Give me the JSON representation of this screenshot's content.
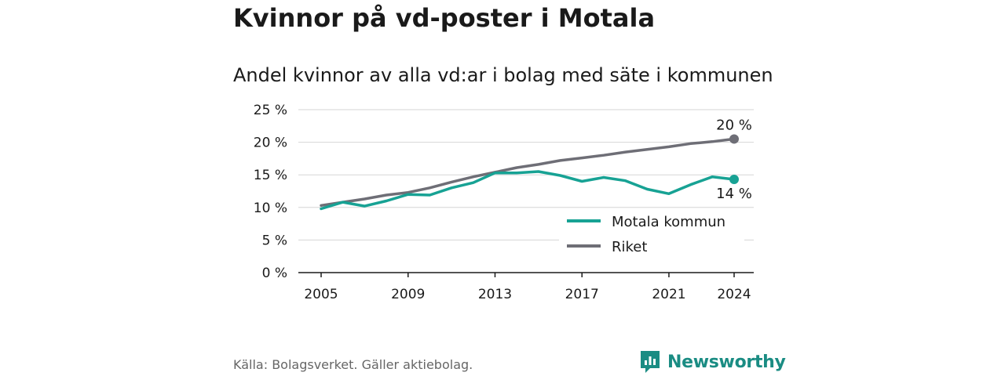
{
  "title": "Kvinnor på vd-poster i Motala",
  "subtitle": "Andel kvinnor av alla vd:ar i bolag med säte i kommunen",
  "source": "Källa: Bolagsverket. Gäller aktiebolag.",
  "brand": "Newsworthy",
  "chart_data": {
    "type": "line",
    "x": [
      2005,
      2006,
      2007,
      2008,
      2009,
      2010,
      2011,
      2012,
      2013,
      2014,
      2015,
      2016,
      2017,
      2018,
      2019,
      2020,
      2021,
      2022,
      2023,
      2024
    ],
    "ylim": [
      0,
      25
    ],
    "yticks": [
      0,
      5,
      10,
      15,
      20,
      25
    ],
    "ytick_labels": [
      "0 %",
      "5 %",
      "10 %",
      "15 %",
      "20 %",
      "25 %"
    ],
    "xticks": [
      2005,
      2009,
      2013,
      2017,
      2021,
      2024
    ],
    "xtick_labels": [
      "2005",
      "2009",
      "2013",
      "2017",
      "2021",
      "2024"
    ],
    "grid": "horizontal",
    "legend_position": "bottom-right",
    "series": [
      {
        "name": "Motala kommun",
        "color": "#17a294",
        "values": [
          9.8,
          10.8,
          10.2,
          11.0,
          12.0,
          11.9,
          13.0,
          13.8,
          15.3,
          15.3,
          15.5,
          14.9,
          14.0,
          14.6,
          14.1,
          12.8,
          12.1,
          13.5,
          14.7,
          14.3
        ],
        "end_label": "14 %"
      },
      {
        "name": "Riket",
        "color": "#6e6e76",
        "values": [
          10.3,
          10.8,
          11.3,
          11.9,
          12.3,
          13.0,
          13.9,
          14.7,
          15.4,
          16.1,
          16.6,
          17.2,
          17.6,
          18.0,
          18.5,
          18.9,
          19.3,
          19.8,
          20.1,
          20.5
        ],
        "end_label": "20 %"
      }
    ]
  }
}
